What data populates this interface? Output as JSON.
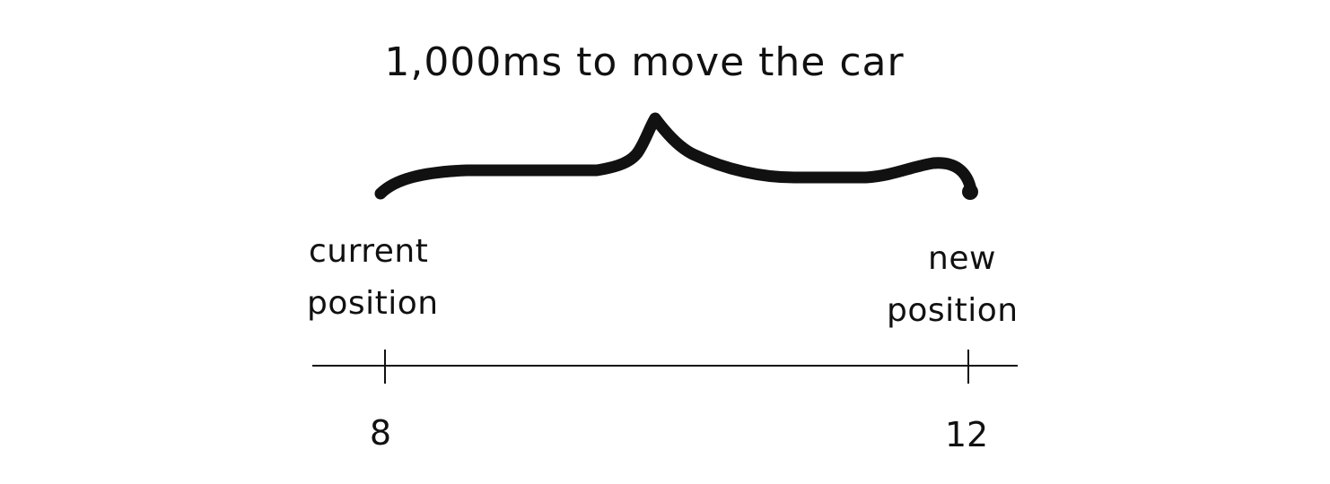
{
  "diagram": {
    "duration_label": "1,000ms to move the car",
    "start": {
      "label_line1": "current",
      "label_line2": "position",
      "value": "8"
    },
    "end": {
      "label_line1": "new",
      "label_line2": "position",
      "value": "12"
    },
    "colors": {
      "ink": "#111111",
      "background": "#ffffff"
    }
  }
}
